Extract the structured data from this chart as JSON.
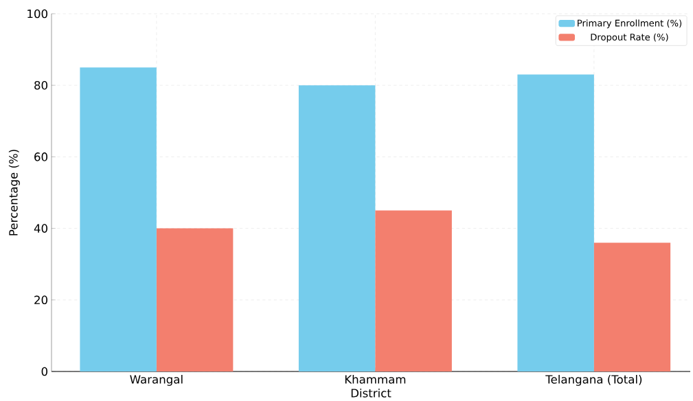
{
  "chart_data": {
    "type": "bar",
    "xlabel": "District",
    "ylabel": "Percentage (%)",
    "categories": [
      "Warangal",
      "Khammam",
      "Telangana (Total)"
    ],
    "series": [
      {
        "name": "Primary Enrollment (%)",
        "color": "#75ccec",
        "values": [
          85,
          80,
          83
        ]
      },
      {
        "name": "Dropout Rate (%)",
        "color": "#f37f6e",
        "values": [
          40,
          45,
          36
        ]
      }
    ],
    "ylim": [
      0,
      100
    ],
    "yticks": [
      0,
      20,
      40,
      60,
      80,
      100
    ],
    "grid": true,
    "legend": "top right"
  }
}
